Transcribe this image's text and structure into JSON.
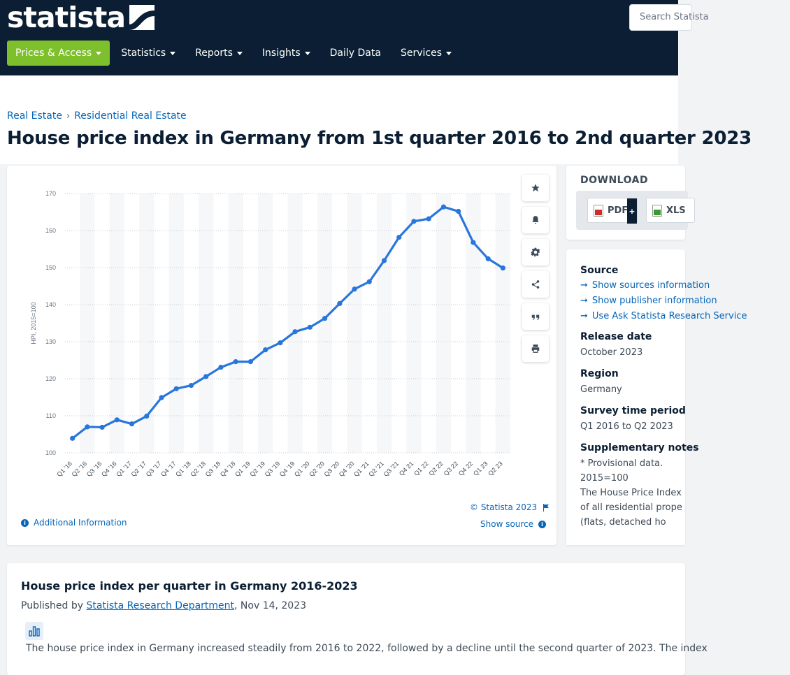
{
  "header": {
    "logo_text": "statista",
    "search_placeholder": "Search Statista",
    "nav": [
      {
        "label": "Prices & Access",
        "dropdown": true,
        "active": true
      },
      {
        "label": "Statistics",
        "dropdown": true
      },
      {
        "label": "Reports",
        "dropdown": true
      },
      {
        "label": "Insights",
        "dropdown": true
      },
      {
        "label": "Daily Data",
        "dropdown": false
      },
      {
        "label": "Services",
        "dropdown": true
      }
    ]
  },
  "breadcrumb": [
    "Real Estate",
    "Residential Real Estate"
  ],
  "page_title": "House price index in Germany from 1st quarter 2016 to 2nd quarter 2023",
  "chart_data": {
    "type": "line",
    "title": "",
    "xlabel": "",
    "ylabel": "HPI, 2015=100",
    "ylim": [
      100,
      170
    ],
    "yticks": [
      100,
      110,
      120,
      130,
      140,
      150,
      160,
      170
    ],
    "grid": true,
    "color": "#2876dd",
    "categories": [
      "Q1 '16",
      "Q2 '16",
      "Q3 '16",
      "Q4 '16",
      "Q1 '17",
      "Q2 '17",
      "Q3 '17",
      "Q4 '17",
      "Q1 '18",
      "Q2 '18",
      "Q3 '18",
      "Q4 '18",
      "Q1 '19",
      "Q2 '19",
      "Q3 '19",
      "Q4 '19",
      "Q1 '20",
      "Q2 '20",
      "Q3 '20",
      "Q4 '20",
      "Q1 '21",
      "Q2 '21",
      "Q3 '21",
      "Q4 21",
      "Q1 22",
      "Q2 22",
      "Q3 22",
      "Q4 22",
      "Q1 23",
      "Q2 23"
    ],
    "values": [
      103.9,
      107.0,
      106.9,
      108.9,
      107.8,
      109.9,
      114.9,
      117.3,
      118.2,
      120.6,
      123.1,
      124.6,
      124.6,
      127.8,
      129.7,
      132.7,
      133.9,
      136.3,
      140.3,
      144.2,
      146.2,
      151.9,
      158.2,
      162.5,
      163.2,
      166.4,
      165.2,
      156.8,
      152.4,
      149.9
    ]
  },
  "chart_tools": {
    "copyright": "© Statista 2023",
    "show_source": "Show source",
    "additional_info": "Additional Information",
    "buttons": [
      "star",
      "bell",
      "gear",
      "share",
      "quote",
      "print"
    ]
  },
  "download": {
    "title": "DOWNLOAD",
    "pdf": "PDF",
    "pdf_plus": "+",
    "xls": "XLS"
  },
  "details": {
    "source_heading": "Source",
    "source_links": [
      "Show sources information",
      "Show publisher information",
      "Use Ask Statista Research Service"
    ],
    "release_heading": "Release date",
    "release_value": "October 2023",
    "region_heading": "Region",
    "region_value": "Germany",
    "survey_heading": "Survey time period",
    "survey_value": "Q1 2016 to Q2 2023",
    "supp_heading": "Supplementary notes",
    "supp_lines": [
      "* Provisional data.",
      "2015=100",
      "The House Price Index",
      "of all residential prope",
      "(flats, detached ho"
    ]
  },
  "article": {
    "title": "House price index per quarter in Germany 2016-2023",
    "published_prefix": "Published by ",
    "author": "Statista Research Department",
    "date_suffix": ", Nov 14, 2023",
    "body": "The house price index in Germany increased steadily from 2016 to 2022, followed by a decline until the second quarter of 2023. The index"
  }
}
